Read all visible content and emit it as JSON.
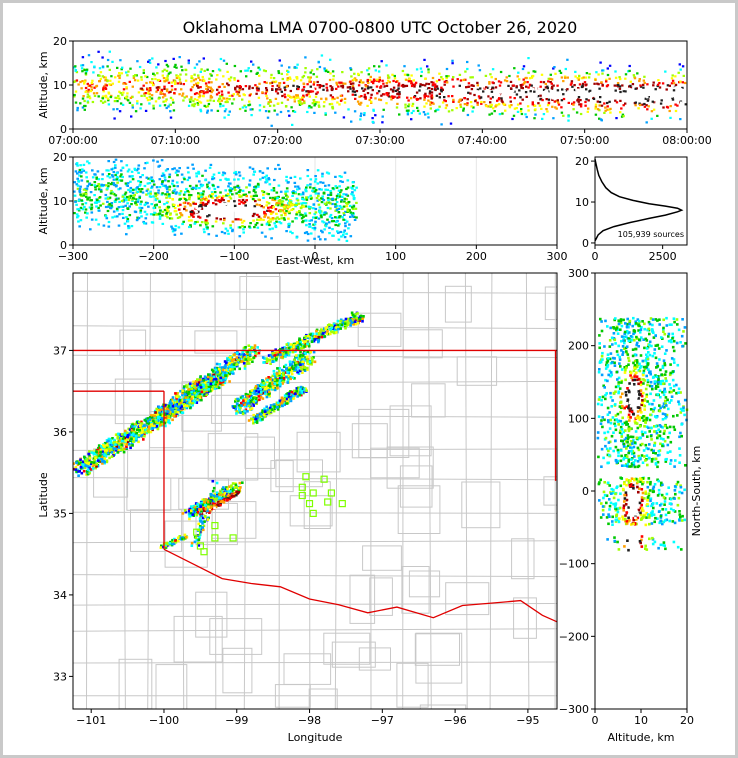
{
  "title": "Oklahoma LMA 0700-0800 UTC October 26, 2020",
  "colors": {
    "rainbow": [
      "#0000ff",
      "#00a0ff",
      "#00ffff",
      "#00c800",
      "#a0ff00",
      "#ffff00",
      "#ffa000",
      "#ff0000",
      "#a00000",
      "#202020",
      "#ffffff"
    ],
    "state_border": "#e00000",
    "county_lines": "#c8c8c8",
    "sensor": "#7fff00"
  },
  "chart_data": [
    {
      "id": "time-altitude",
      "type": "heatmap",
      "ylabel": "Altitude, km",
      "ylim": [
        0,
        20
      ],
      "y_ticks": [
        "0",
        "10",
        "20"
      ],
      "x_ticks": [
        "07:00:00",
        "07:10:00",
        "07:20:00",
        "07:30:00",
        "07:40:00",
        "07:50:00",
        "08:00:00"
      ],
      "x_tick_values_min": [
        0,
        10,
        20,
        30,
        40,
        50,
        60
      ],
      "xlim": [
        0,
        60
      ]
    },
    {
      "id": "east-west-altitude",
      "type": "heatmap",
      "xlabel": "East-West, km",
      "ylabel": "Altitude, km",
      "xlim": [
        -300,
        300
      ],
      "ylim": [
        0,
        20
      ],
      "x_ticks": [
        "−300",
        "−200",
        "−100",
        "0",
        "100",
        "200",
        "300"
      ],
      "y_ticks": [
        "0",
        "10",
        "20"
      ]
    },
    {
      "id": "altitude-histogram",
      "type": "line",
      "xlim": [
        0,
        3400
      ],
      "ylim": [
        -0.5,
        21
      ],
      "x_ticks": [
        "0",
        "2500"
      ],
      "y_ticks": [
        "0",
        "10",
        "20"
      ],
      "annotation": "105,939 sources",
      "x": [
        0,
        40,
        120,
        300,
        700,
        1300,
        2000,
        2600,
        3050,
        3200,
        3050,
        2600,
        2000,
        1400,
        900,
        600,
        400,
        250,
        140,
        80,
        30,
        0
      ],
      "y": [
        0.5,
        1,
        2,
        3,
        4,
        5,
        6,
        6.8,
        7.6,
        8,
        8.5,
        9,
        9.6,
        10.4,
        11.3,
        12.3,
        13.5,
        15,
        16.5,
        18,
        19.5,
        20.5
      ]
    },
    {
      "id": "plan-view",
      "type": "heatmap",
      "xlabel": "Longitude",
      "ylabel": "Latitude",
      "xlim": [
        -101.25,
        -94.6
      ],
      "ylim": [
        32.6,
        37.95
      ],
      "x_ticks": [
        "−101",
        "−100",
        "−99",
        "−98",
        "−97",
        "−96",
        "−95"
      ],
      "x_tick_values": [
        -101,
        -100,
        -99,
        -98,
        -97,
        -96,
        -95
      ],
      "y_ticks": [
        "33",
        "34",
        "35",
        "36",
        "37"
      ],
      "y_tick_values": [
        33,
        34,
        35,
        36,
        37
      ],
      "sensors": [
        [
          -98.05,
          35.45
        ],
        [
          -97.8,
          35.42
        ],
        [
          -98.1,
          35.32
        ],
        [
          -97.95,
          35.25
        ],
        [
          -97.7,
          35.25
        ],
        [
          -98.1,
          35.22
        ],
        [
          -98.0,
          35.12
        ],
        [
          -97.75,
          35.14
        ],
        [
          -97.55,
          35.12
        ],
        [
          -97.95,
          35.0
        ],
        [
          -99.3,
          34.85
        ],
        [
          -99.55,
          34.77
        ],
        [
          -99.3,
          34.7
        ],
        [
          -99.05,
          34.7
        ],
        [
          -99.5,
          34.6
        ],
        [
          -99.45,
          34.53
        ]
      ]
    },
    {
      "id": "altitude-north-south",
      "type": "heatmap",
      "xlabel": "Altitude, km",
      "ylabel": "North-South, km",
      "xlim": [
        0,
        20
      ],
      "ylim": [
        -300,
        300
      ],
      "x_ticks": [
        "0",
        "10",
        "20"
      ],
      "y_ticks": [
        "−300",
        "−200",
        "−100",
        "0",
        "100",
        "200",
        "300"
      ]
    }
  ]
}
